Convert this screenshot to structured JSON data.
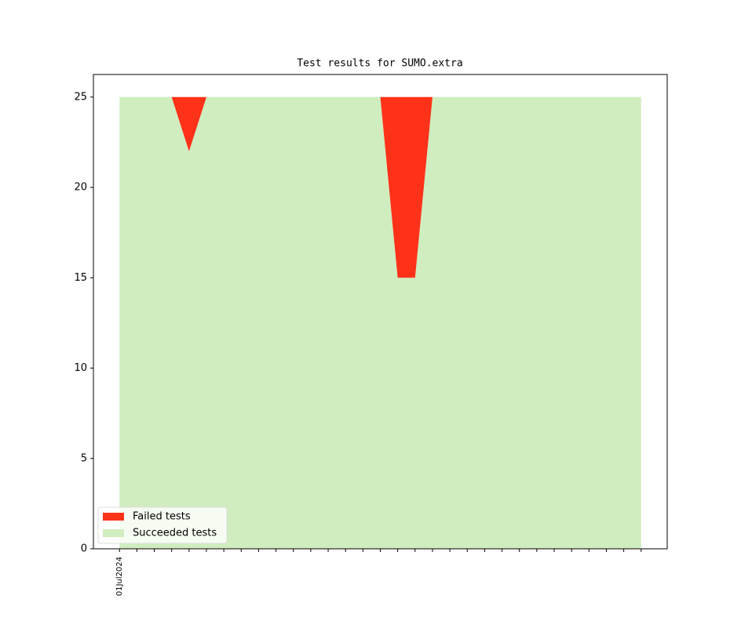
{
  "chart_data": {
    "type": "stacked_area",
    "title": "Test results for SUMO.extra",
    "categories": [
      "01Jul2024",
      null,
      null,
      null,
      null,
      null,
      null,
      null,
      null,
      null,
      null,
      null,
      null,
      null,
      null,
      null,
      null,
      null,
      null,
      null,
      null,
      null,
      null,
      null,
      null,
      null,
      null,
      null,
      null,
      null,
      null
    ],
    "series": [
      {
        "name": "Failed tests",
        "color": "#fe3219",
        "values": [
          0,
          0,
          0,
          0,
          3,
          0,
          0,
          0,
          0,
          0,
          0,
          0,
          0,
          0,
          0,
          0,
          10,
          10,
          0,
          0,
          0,
          0,
          0,
          0,
          0,
          0,
          0,
          0,
          0,
          0,
          0
        ]
      },
      {
        "name": "Succeeded tests",
        "color": "#cfedbf",
        "values": [
          25,
          25,
          25,
          25,
          22,
          25,
          25,
          25,
          25,
          25,
          25,
          25,
          25,
          25,
          25,
          25,
          15,
          15,
          25,
          25,
          25,
          25,
          25,
          25,
          25,
          25,
          25,
          25,
          25,
          25,
          25
        ]
      }
    ],
    "xlim": [
      -1.5,
      31.5
    ],
    "ylim": [
      0,
      26.25
    ],
    "yticks": [
      0,
      5,
      10,
      15,
      20,
      25
    ],
    "legend": "lower left"
  }
}
